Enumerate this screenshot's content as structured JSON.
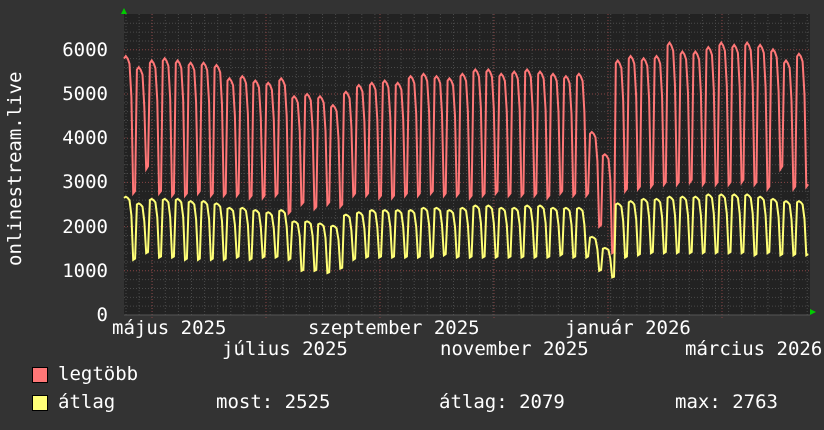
{
  "chart_data": {
    "type": "line",
    "ylabel": "onlinestream.live",
    "ylim": [
      0,
      6600
    ],
    "yticks": [
      "0",
      "1000",
      "2000",
      "3000",
      "4000",
      "5000",
      "6000"
    ],
    "xticks": [
      "május 2025",
      "július 2025",
      "szeptember 2025",
      "november 2025",
      "január 2026",
      "március 2026"
    ],
    "grid": true,
    "legend_placement": "bottom-left",
    "x_granularity": "weekly (weekday level, weekend level)",
    "series": [
      {
        "name": "legtöbb",
        "color": "#ff7777",
        "weekday": [
          5800,
          5550,
          5700,
          5750,
          5700,
          5650,
          5650,
          5600,
          5300,
          5350,
          5250,
          5200,
          5300,
          4900,
          4950,
          4900,
          4700,
          5000,
          5150,
          5200,
          5250,
          5200,
          5350,
          5400,
          5350,
          5300,
          5400,
          5500,
          5500,
          5400,
          5450,
          5500,
          5450,
          5400,
          5350,
          5400,
          4100,
          3600,
          5700,
          5800,
          5750,
          5800,
          6100,
          5900,
          5900,
          6000,
          6100,
          6050,
          6100,
          6050,
          5950,
          5700,
          5850
        ],
        "weekend": [
          2750,
          3300,
          2750,
          2700,
          2700,
          2750,
          2700,
          2700,
          2700,
          2650,
          2650,
          2700,
          2300,
          2500,
          2400,
          2500,
          2450,
          2700,
          2700,
          2650,
          2650,
          2700,
          2700,
          2750,
          2700,
          2700,
          2650,
          2700,
          2750,
          2700,
          2700,
          2700,
          2650,
          2750,
          2700,
          2700,
          2000,
          1400,
          2800,
          2850,
          2900,
          2950,
          2950,
          3000,
          2950,
          2950,
          2950,
          3000,
          2950,
          2850,
          3300,
          2850,
          2900
        ]
      },
      {
        "name": "átlag",
        "color": "#ffff77",
        "weekday": [
          2650,
          2500,
          2600,
          2600,
          2600,
          2550,
          2550,
          2500,
          2400,
          2400,
          2350,
          2300,
          2350,
          2100,
          2100,
          2050,
          2000,
          2250,
          2300,
          2350,
          2350,
          2350,
          2350,
          2400,
          2400,
          2350,
          2400,
          2450,
          2450,
          2400,
          2400,
          2450,
          2450,
          2400,
          2400,
          2400,
          1750,
          1500,
          2500,
          2550,
          2600,
          2600,
          2650,
          2650,
          2650,
          2700,
          2700,
          2700,
          2700,
          2650,
          2600,
          2550,
          2550
        ],
        "weekend": [
          1250,
          1400,
          1300,
          1300,
          1250,
          1250,
          1250,
          1250,
          1300,
          1250,
          1300,
          1300,
          1250,
          1000,
          1000,
          950,
          1050,
          1250,
          1300,
          1300,
          1300,
          1300,
          1300,
          1300,
          1350,
          1300,
          1300,
          1300,
          1300,
          1300,
          1300,
          1300,
          1300,
          1350,
          1300,
          1300,
          1000,
          850,
          1300,
          1350,
          1400,
          1400,
          1400,
          1400,
          1400,
          1400,
          1400,
          1400,
          1350,
          1400,
          1350,
          1350,
          1350
        ]
      }
    ]
  },
  "legend": {
    "items": [
      {
        "label": "legtöbb",
        "color": "#ff7777"
      },
      {
        "label": "átlag",
        "color": "#ffff77"
      }
    ],
    "stats": {
      "now": "most: 2525",
      "avg": "átlag: 2079",
      "max": "max: 2763"
    }
  },
  "colors": {
    "background": "#333333",
    "plot": "#222222",
    "grid_minor": "#555555",
    "grid_major": "#884444",
    "axis_arrow": "#00cc00"
  }
}
